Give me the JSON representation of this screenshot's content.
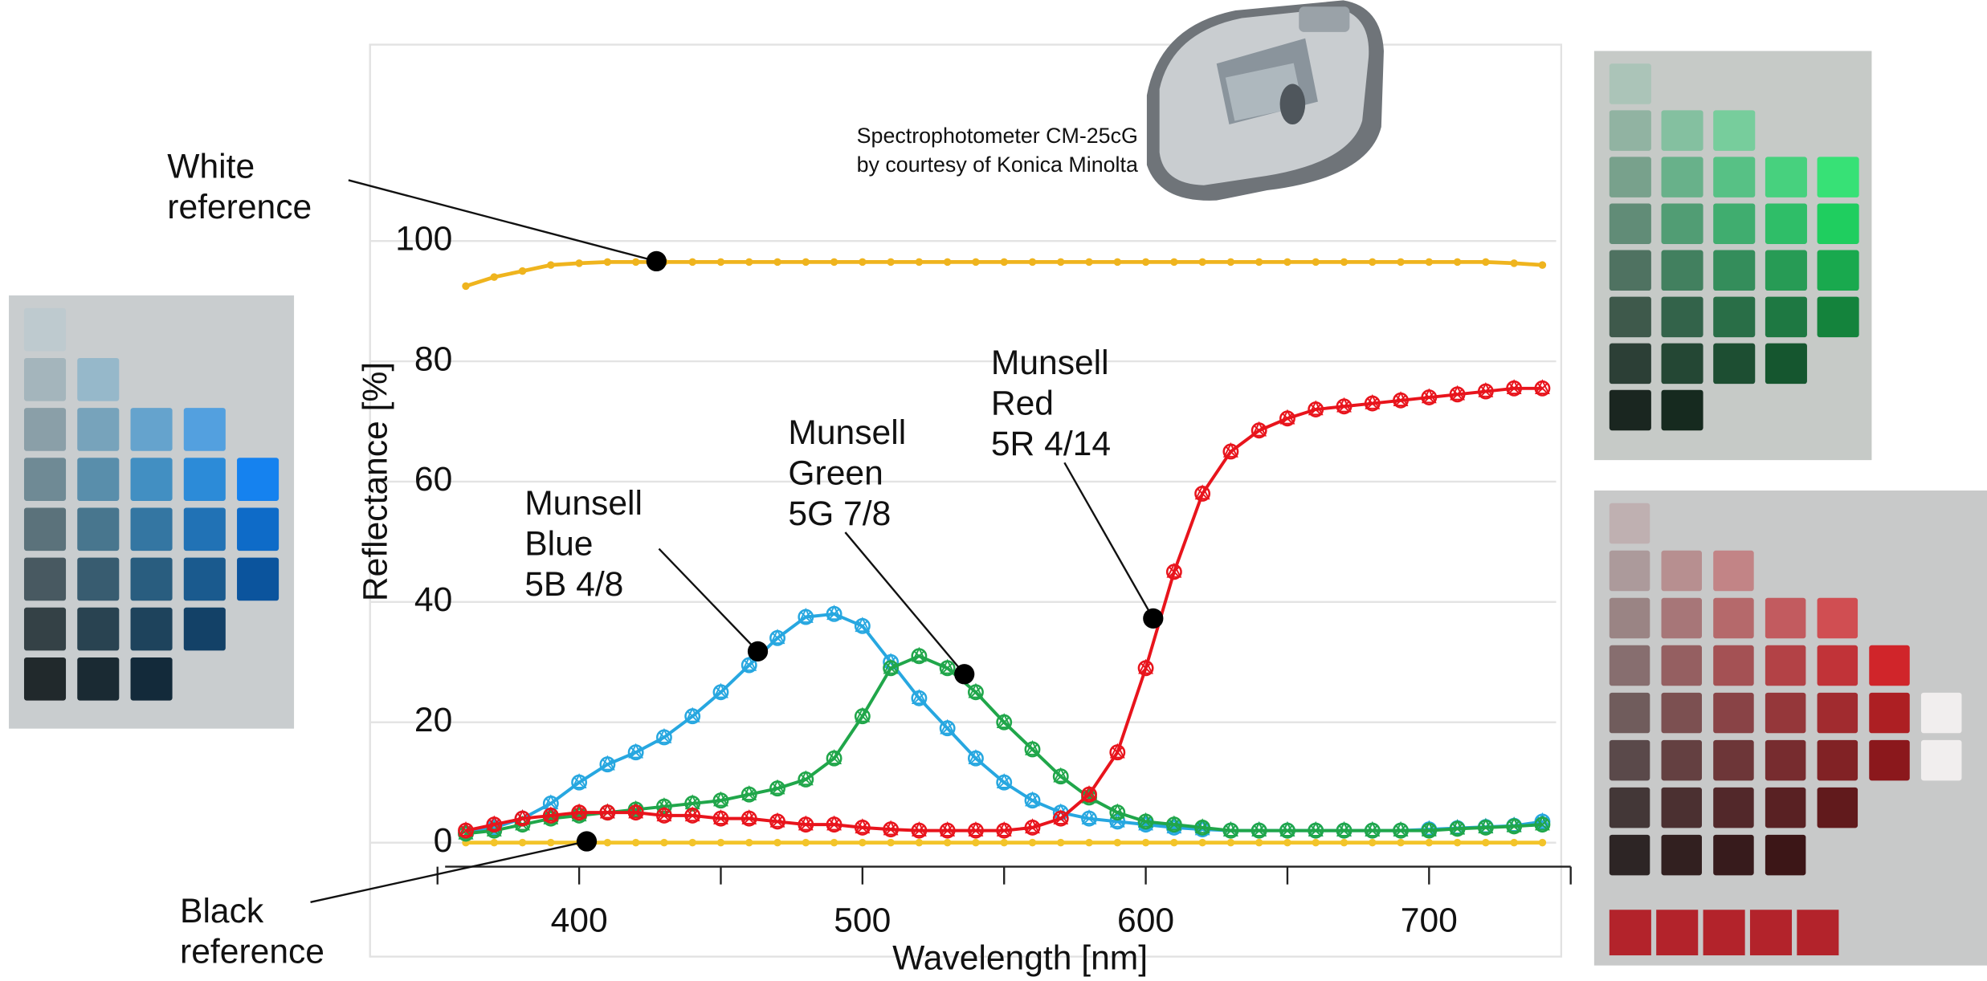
{
  "chart_data": {
    "type": "line",
    "x_label": "Wavelength [nm]",
    "y_label": "Reflectance [%]",
    "caption": [
      "Spectrophotometer CM-25cG",
      "by courtesy of Konica Minolta"
    ],
    "x": [
      360,
      370,
      380,
      390,
      400,
      410,
      420,
      430,
      440,
      450,
      460,
      470,
      480,
      490,
      500,
      510,
      520,
      530,
      540,
      550,
      560,
      570,
      580,
      590,
      600,
      610,
      620,
      630,
      640,
      650,
      660,
      670,
      680,
      690,
      700,
      710,
      720,
      730,
      740
    ],
    "xlim": [
      350,
      750
    ],
    "xticks": [
      400,
      500,
      600,
      700
    ],
    "xminorticks": [
      350,
      450,
      550,
      650,
      750
    ],
    "ylim": [
      -4,
      132
    ],
    "yticks": [
      0,
      20,
      40,
      60,
      80,
      100
    ],
    "grid": true,
    "series": [
      {
        "label": [
          "White",
          "reference"
        ],
        "color": "#efb41e",
        "values": [
          92.5,
          94,
          95,
          96,
          96.3,
          96.5,
          96.5,
          96.5,
          96.5,
          96.5,
          96.5,
          96.5,
          96.5,
          96.5,
          96.5,
          96.5,
          96.5,
          96.5,
          96.5,
          96.5,
          96.5,
          96.5,
          96.5,
          96.5,
          96.5,
          96.5,
          96.5,
          96.5,
          96.5,
          96.5,
          96.5,
          96.5,
          96.5,
          96.5,
          96.5,
          96.5,
          96.5,
          96.3,
          96
        ]
      },
      {
        "label": [
          "Black",
          "reference"
        ],
        "color": "#f3c42a",
        "values": [
          0,
          0,
          0,
          0,
          0,
          0,
          0,
          0,
          0,
          0,
          0,
          0,
          0,
          0,
          0,
          0,
          0,
          0,
          0,
          0,
          0,
          0,
          0,
          0,
          0,
          0,
          0,
          0,
          0,
          0,
          0,
          0,
          0,
          0,
          0,
          0,
          0,
          0,
          0
        ]
      },
      {
        "label": [
          "Munsell",
          "Blue",
          "5B 4/8"
        ],
        "color": "#27a7e0",
        "values": [
          1.5,
          2.5,
          4,
          6.5,
          10,
          13,
          15,
          17.5,
          21,
          25,
          29.5,
          34,
          37.5,
          38,
          36,
          30,
          24,
          19,
          14,
          10,
          7,
          5,
          4,
          3.5,
          3,
          2.5,
          2.2,
          2,
          2,
          2,
          2,
          2,
          2,
          2,
          2.2,
          2.4,
          2.6,
          2.8,
          3.5
        ]
      },
      {
        "label": [
          "Munsell",
          "Green",
          "5G 7/8"
        ],
        "color": "#20a64a",
        "values": [
          1.5,
          2,
          3,
          4,
          4.5,
          5,
          5.5,
          6,
          6.5,
          7,
          8,
          9,
          10.5,
          14,
          21,
          29,
          31,
          29,
          25,
          20,
          15.5,
          11,
          7.5,
          5,
          3.5,
          3,
          2.5,
          2,
          2,
          2,
          2,
          2,
          2,
          2,
          2,
          2.3,
          2.5,
          2.7,
          3
        ]
      },
      {
        "label": [
          "Munsell",
          "Red",
          "5R 4/14"
        ],
        "color": "#e8141c",
        "values": [
          2,
          3,
          4,
          4.5,
          5,
          5,
          5,
          4.5,
          4.5,
          4,
          4,
          3.5,
          3,
          3,
          2.5,
          2.2,
          2,
          2,
          2,
          2,
          2.5,
          4,
          8,
          15,
          29,
          45,
          58,
          65,
          68.5,
          70.5,
          72,
          72.5,
          73,
          73.5,
          74,
          74.5,
          75,
          75.5,
          75.5
        ]
      }
    ]
  }
}
